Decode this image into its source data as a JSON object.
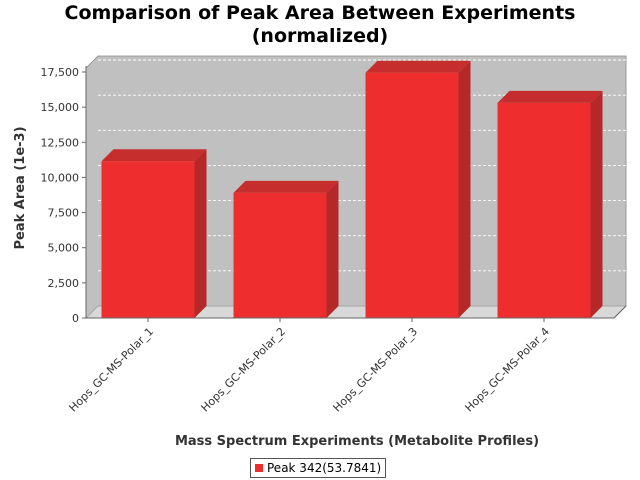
{
  "chart_data": {
    "type": "bar",
    "title": "Comparison of Peak Area Between Experiments\n(normalized)",
    "xlabel": "Mass Spectrum Experiments (Metabolite Profiles)",
    "ylabel": "Peak Area (1e-3)",
    "categories": [
      "Hops_GC-MS-Polar_1",
      "Hops_GC-MS-Polar_2",
      "Hops_GC-MS-Polar_3",
      "Hops_GC-MS-Polar_4"
    ],
    "series": [
      {
        "name": "Peak 342(53.7841)",
        "values": [
          11150,
          8900,
          17450,
          15300
        ]
      }
    ],
    "ylim": [
      0,
      17500
    ],
    "yticks": [
      0,
      2500,
      5000,
      7500,
      10000,
      12500,
      15000,
      17500
    ],
    "ytick_labels": [
      "0",
      "2,500",
      "5,000",
      "7,500",
      "10,000",
      "12,500",
      "15,000",
      "17,500"
    ],
    "grid": true,
    "legend_position": "bottom",
    "colors": {
      "bar": "#ee2e2e",
      "bar_side": "#b52828",
      "bar_top": "#c62d2d",
      "plot_bg": "#c0c0c0",
      "floor": "#d8d8d8"
    }
  }
}
